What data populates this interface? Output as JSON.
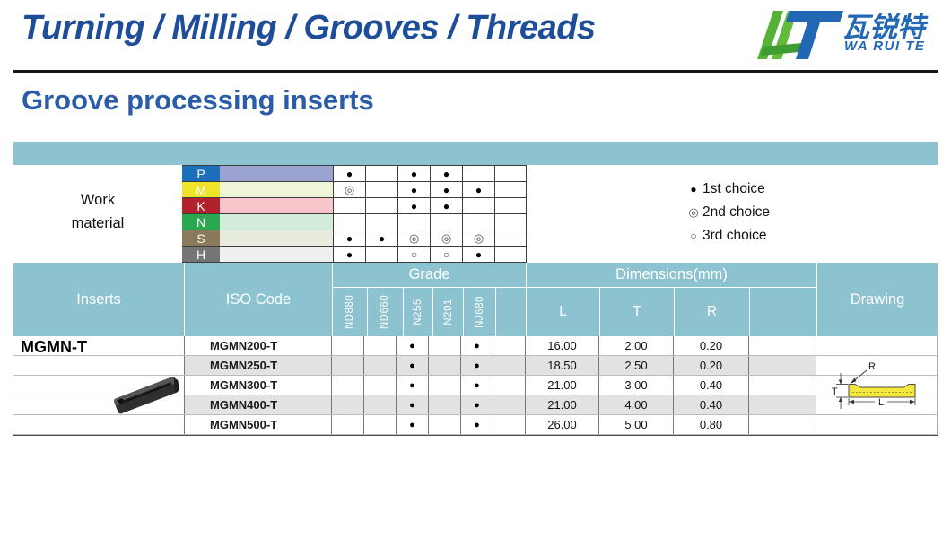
{
  "header": {
    "nav_title": "Turning / Milling / Grooves / Threads",
    "logo_cn": "瓦锐特",
    "logo_en": "WA RUI TE"
  },
  "page_title": "Groove processing inserts",
  "colors": {
    "accent_teal": "#8dc2d0",
    "nav_blue": "#1e4e9a",
    "title_blue": "#2a5ca8",
    "logo_blue": "#2368b4",
    "logo_green": "#55b236",
    "alt_row_grey": "#e2e2e2",
    "drawing_yellow": "#f4e73e"
  },
  "choice_symbols": {
    "1": "●",
    "2": "◎",
    "3": "○"
  },
  "legend": [
    {
      "level": "1",
      "label": "1st choice"
    },
    {
      "level": "2",
      "label": "2nd choice"
    },
    {
      "level": "3",
      "label": "3rd choice"
    }
  ],
  "work_material": {
    "label_line1": "Work",
    "label_line2": "material",
    "rows": [
      {
        "code": "P",
        "badge_color": "#1c6fba",
        "bar_color": "#9ba3d0",
        "choices": [
          "1",
          "",
          "1",
          "1",
          "",
          ""
        ]
      },
      {
        "code": "M",
        "badge_color": "#efe428",
        "bar_color": "#eff5d8",
        "choices": [
          "2",
          "",
          "1",
          "1",
          "1",
          ""
        ]
      },
      {
        "code": "K",
        "badge_color": "#b2222c",
        "bar_color": "#f8c6ca",
        "choices": [
          "",
          "",
          "1",
          "1",
          "",
          ""
        ]
      },
      {
        "code": "N",
        "badge_color": "#2aa84f",
        "bar_color": "#d3ebda",
        "choices": [
          "",
          "",
          "",
          "",
          "",
          ""
        ]
      },
      {
        "code": "S",
        "badge_color": "#8a795a",
        "bar_color": "#e7ecdf",
        "choices": [
          "1",
          "1",
          "2",
          "2",
          "2",
          ""
        ]
      },
      {
        "code": "H",
        "badge_color": "#757575",
        "bar_color": "#eef0ed",
        "choices": [
          "1",
          "",
          "3",
          "3",
          "1",
          ""
        ]
      }
    ]
  },
  "table": {
    "headers": {
      "inserts": "Inserts",
      "iso_code": "ISO Code",
      "grade": "Grade",
      "dimensions": "Dimensions(mm)",
      "drawing": "Drawing"
    },
    "grades": [
      "ND880",
      "ND660",
      "N255",
      "N201",
      "NJ680",
      ""
    ],
    "dim_columns": [
      "L",
      "T",
      "R",
      ""
    ],
    "series_label": "MGMN-T",
    "rows": [
      {
        "iso": "MGMN200-T",
        "choices": [
          "",
          "",
          "1",
          "",
          "1",
          ""
        ],
        "L": "16.00",
        "T": "2.00",
        "R": "0.20"
      },
      {
        "iso": "MGMN250-T",
        "choices": [
          "",
          "",
          "1",
          "",
          "1",
          ""
        ],
        "L": "18.50",
        "T": "2.50",
        "R": "0.20"
      },
      {
        "iso": "MGMN300-T",
        "choices": [
          "",
          "",
          "1",
          "",
          "1",
          ""
        ],
        "L": "21.00",
        "T": "3.00",
        "R": "0.40"
      },
      {
        "iso": "MGMN400-T",
        "choices": [
          "",
          "",
          "1",
          "",
          "1",
          ""
        ],
        "L": "21.00",
        "T": "4.00",
        "R": "0.40"
      },
      {
        "iso": "MGMN500-T",
        "choices": [
          "",
          "",
          "1",
          "",
          "1",
          ""
        ],
        "L": "26.00",
        "T": "5.00",
        "R": "0.80"
      }
    ]
  },
  "drawing_labels": {
    "R": "R",
    "T": "T",
    "L": "L"
  }
}
